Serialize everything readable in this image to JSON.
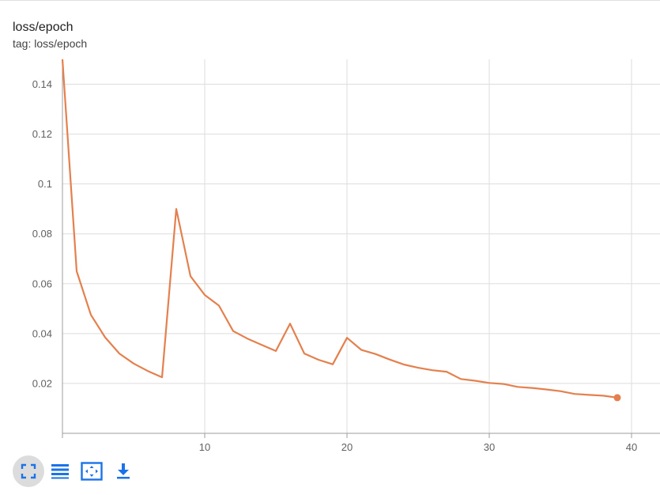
{
  "card": {
    "title": "loss/epoch",
    "tag": "tag: loss/epoch"
  },
  "colors": {
    "series": "#e4804e",
    "grid": "#dddddd",
    "axis": "#9e9e9e",
    "icon": "#1a73e8"
  },
  "toolbar": {
    "buttons": [
      {
        "name": "fullscreen-toggle-icon",
        "active": true
      },
      {
        "name": "list-lines-icon",
        "active": false
      },
      {
        "name": "fit-domain-icon",
        "active": false
      },
      {
        "name": "download-icon",
        "active": false
      }
    ]
  },
  "chart_data": {
    "type": "line",
    "title": "loss/epoch",
    "xlabel": "",
    "ylabel": "",
    "xlim": [
      0,
      42
    ],
    "ylim": [
      0,
      0.15
    ],
    "grid": true,
    "x_ticks": [
      10,
      20,
      30,
      40
    ],
    "y_ticks": [
      0.02,
      0.04,
      0.06,
      0.08,
      0.1,
      0.12,
      0.14
    ],
    "x_tick_labels": [
      "10",
      "20",
      "30",
      "40"
    ],
    "y_tick_labels": [
      "0.02",
      "0.04",
      "0.06",
      "0.08",
      "0.1",
      "0.12",
      "0.14"
    ],
    "series": [
      {
        "x": [
          0,
          1,
          2,
          3,
          4,
          5,
          6,
          7,
          8,
          9,
          10,
          11,
          12,
          13,
          14,
          15,
          16,
          17,
          18,
          19,
          20,
          21,
          22,
          23,
          24,
          25,
          26,
          27,
          28,
          29,
          30,
          31,
          32,
          33,
          34,
          35,
          36,
          37,
          38,
          39
        ],
        "y": [
          0.15,
          0.065,
          0.0475,
          0.0385,
          0.032,
          0.028,
          0.025,
          0.0225,
          0.09,
          0.063,
          0.0555,
          0.0512,
          0.041,
          0.038,
          0.0355,
          0.033,
          0.044,
          0.032,
          0.0295,
          0.0277,
          0.0383,
          0.0335,
          0.0318,
          0.0296,
          0.0276,
          0.0263,
          0.0253,
          0.0247,
          0.0218,
          0.0211,
          0.0202,
          0.0198,
          0.0186,
          0.0182,
          0.0176,
          0.0169,
          0.0158,
          0.0154,
          0.0151,
          0.0143
        ]
      }
    ]
  }
}
